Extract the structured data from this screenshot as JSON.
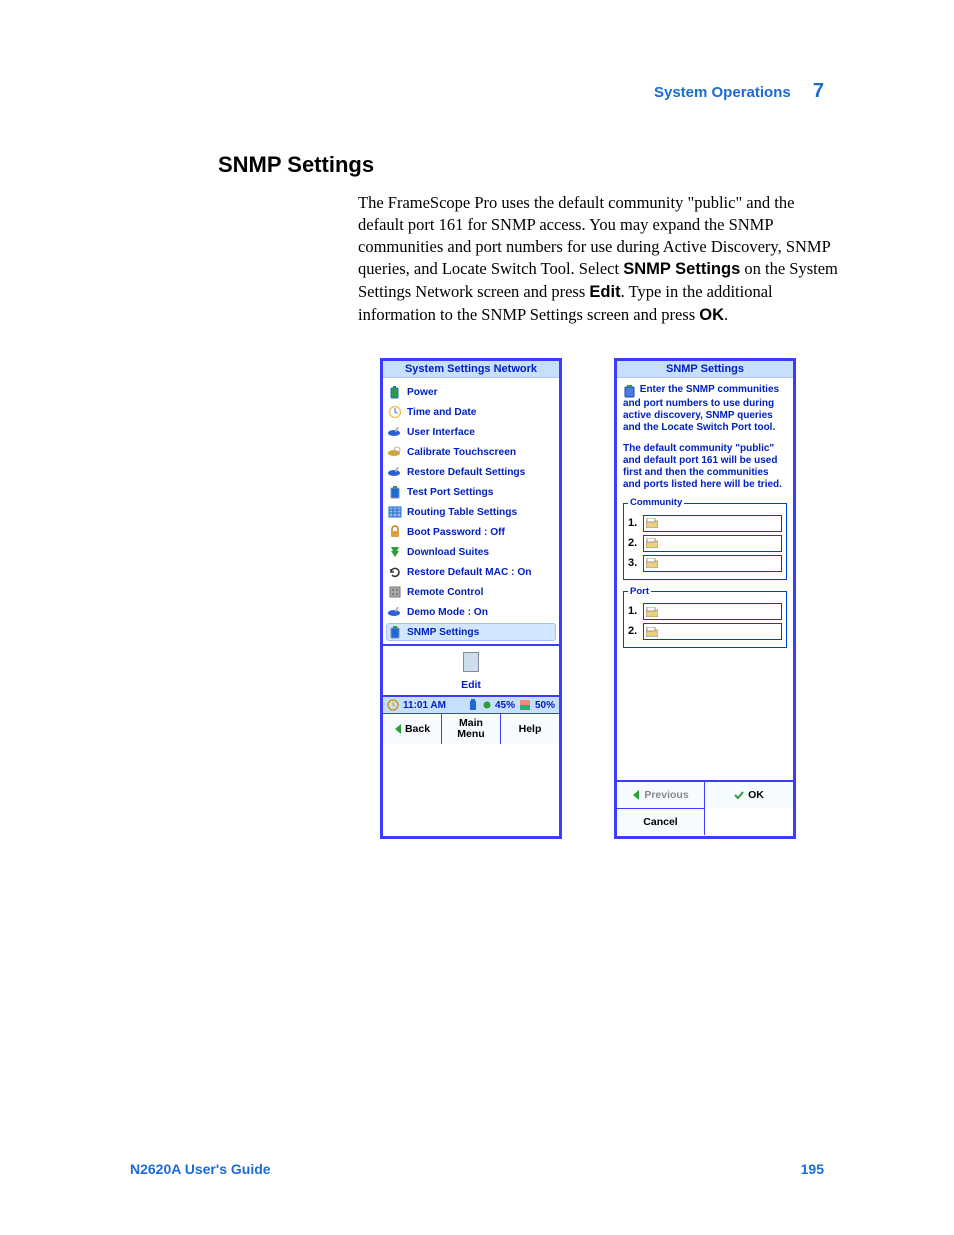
{
  "header": {
    "section": "System Operations",
    "chapter": "7"
  },
  "section_title": "SNMP Settings",
  "body": {
    "p1a": "The FrameScope Pro uses the default community \"public\" and the default port 161 for SNMP access. You may expand the SNMP communities and port numbers for use during Active Discovery, SNMP queries, and Locate Switch Tool. Select ",
    "p1b": "SNMP Settings",
    "p1c": " on the System Settings Network screen and press ",
    "p1d": "Edit",
    "p1e": ". Type in the additional information to the SNMP Settings screen and press  ",
    "p1f": "OK",
    "p1g": "."
  },
  "left": {
    "title": "System Settings Network",
    "items": [
      {
        "label": "Power",
        "icon": "battery-icon",
        "colors": [
          "#2e9e3a",
          "#1a6bd6"
        ]
      },
      {
        "label": "Time and Date",
        "icon": "clock-icon",
        "colors": [
          "#f3c560",
          "#1a6bd6"
        ]
      },
      {
        "label": "User Interface",
        "icon": "wrench-icon",
        "colors": [
          "#2e5fd6",
          "#b0b0b0"
        ]
      },
      {
        "label": "Calibrate Touchscreen",
        "icon": "target-icon",
        "colors": [
          "#d6a32e",
          "#b0b0b0"
        ]
      },
      {
        "label": "Restore Default Settings",
        "icon": "wrench-icon",
        "colors": [
          "#2e5fd6",
          "#b0b0b0"
        ]
      },
      {
        "label": "Test Port Settings",
        "icon": "device-icon",
        "colors": [
          "#1a6bd6",
          "#88a"
        ]
      },
      {
        "label": "Routing Table Settings",
        "icon": "table-icon",
        "colors": [
          "#1a6bd6",
          "#a0b8e8"
        ]
      },
      {
        "label": "Boot Password : Off",
        "icon": "lock-icon",
        "colors": [
          "#e0a040",
          "#cc7a00"
        ]
      },
      {
        "label": "Download Suites",
        "icon": "download-icon",
        "colors": [
          "#2e9e3a",
          "#888"
        ]
      },
      {
        "label": "Restore Default MAC : On",
        "icon": "refresh-icon",
        "colors": [
          "#333",
          "#333"
        ]
      },
      {
        "label": "Remote Control",
        "icon": "remote-icon",
        "colors": [
          "#777",
          "#aaa"
        ]
      },
      {
        "label": "Demo Mode : On",
        "icon": "wrench-icon",
        "colors": [
          "#2e5fd6",
          "#b0b0b0"
        ]
      },
      {
        "label": "SNMP Settings",
        "icon": "device-icon",
        "colors": [
          "#1a6bd6",
          "#88a"
        ],
        "selected": true
      }
    ],
    "edit_label": "Edit",
    "status": {
      "time": "11:01 AM",
      "bat": "45%",
      "disk": "50%"
    },
    "nav": {
      "back": "Back",
      "main": "Main\nMenu",
      "help": "Help"
    }
  },
  "right": {
    "title": "SNMP Settings",
    "intro": "Enter the SNMP communities and port numbers to use during active discovery, SNMP queries and the Locate Switch Port tool.",
    "intro2": "The default community \"public\" and default port 161 will be used first and then the communities and ports listed here will be tried.",
    "community_legend": "Community",
    "port_legend": "Port",
    "rows_community": [
      "1.",
      "2.",
      "3."
    ],
    "rows_port": [
      "1.",
      "2."
    ],
    "buttons": {
      "previous": "Previous",
      "ok": "OK",
      "cancel": "Cancel"
    }
  },
  "footer": {
    "guide": "N2620A User's Guide",
    "page": "195"
  },
  "colors": {
    "accent": "#1a6bd6",
    "frame": "#3c3cff",
    "device_header_bg": "#c7defd",
    "device_text": "#0020c0",
    "selected_bg": "#d2e7ff"
  }
}
